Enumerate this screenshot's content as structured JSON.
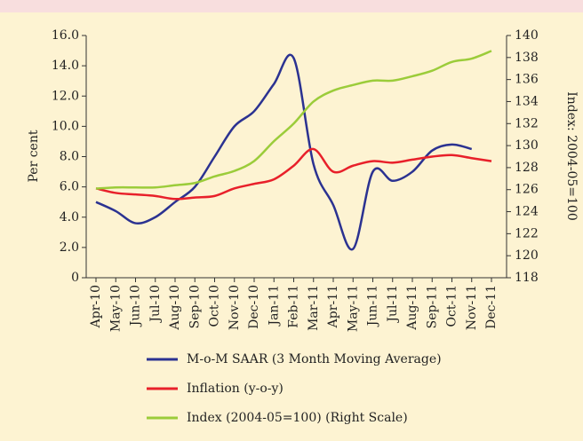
{
  "chart_data": {
    "type": "line",
    "y_label": "Per cent",
    "y2_label": "Index: 2004-05=100",
    "categories": [
      "Apr-10",
      "May-10",
      "Jun-10",
      "Jul-10",
      "Aug-10",
      "Sep-10",
      "Oct-10",
      "Nov-10",
      "Dec-10",
      "Jan-11",
      "Feb-11",
      "Mar-11",
      "Apr-11",
      "May-11",
      "Jun-11",
      "Jul-11",
      "Aug-11",
      "Sep-11",
      "Oct-11",
      "Nov-11",
      "Dec-11"
    ],
    "series": [
      {
        "name": "M-o-M SAAR (3 Month Moving Average)",
        "color": "#2b3291",
        "values": [
          5.0,
          4.4,
          3.6,
          4.0,
          5.0,
          6.0,
          8.0,
          10.0,
          11.0,
          12.8,
          14.5,
          7.5,
          4.8,
          1.9,
          7.0,
          6.4,
          7.0,
          8.4,
          8.8,
          8.5,
          null
        ]
      },
      {
        "name": "Inflation (y-o-y)",
        "color": "#e8202a",
        "values": [
          5.9,
          5.6,
          5.5,
          5.4,
          5.2,
          5.3,
          5.4,
          5.9,
          6.2,
          6.5,
          7.4,
          8.5,
          7.0,
          7.4,
          7.7,
          7.6,
          7.8,
          8.0,
          8.1,
          7.9,
          7.7
        ]
      },
      {
        "name": "Index (2004-05=100) (Right Scale)",
        "color": "#9bcc3a",
        "axis": "y2",
        "values": [
          126.1,
          126.2,
          126.2,
          126.2,
          126.4,
          126.6,
          127.2,
          127.7,
          128.6,
          130.4,
          132.0,
          134.0,
          135.0,
          135.5,
          135.9,
          135.9,
          136.3,
          136.8,
          137.6,
          137.9,
          138.6
        ]
      }
    ],
    "ylim": [
      0,
      16
    ],
    "yticks": [
      0,
      {
        "value": 2,
        "label": "2.0"
      },
      {
        "value": 4,
        "label": "4.0"
      },
      {
        "value": 6,
        "label": "6.0"
      },
      {
        "value": 8,
        "label": "8.0"
      },
      {
        "value": 10,
        "label": "10.0"
      },
      {
        "value": 12,
        "label": "12.0"
      },
      {
        "value": 14,
        "label": "14.0"
      },
      {
        "value": 16,
        "label": "16.0"
      }
    ],
    "y2lim": [
      118,
      140
    ],
    "y2ticks": [
      118,
      120,
      122,
      124,
      126,
      128,
      130,
      132,
      134,
      136,
      138,
      140
    ],
    "grid": false,
    "legend": "bottom"
  }
}
